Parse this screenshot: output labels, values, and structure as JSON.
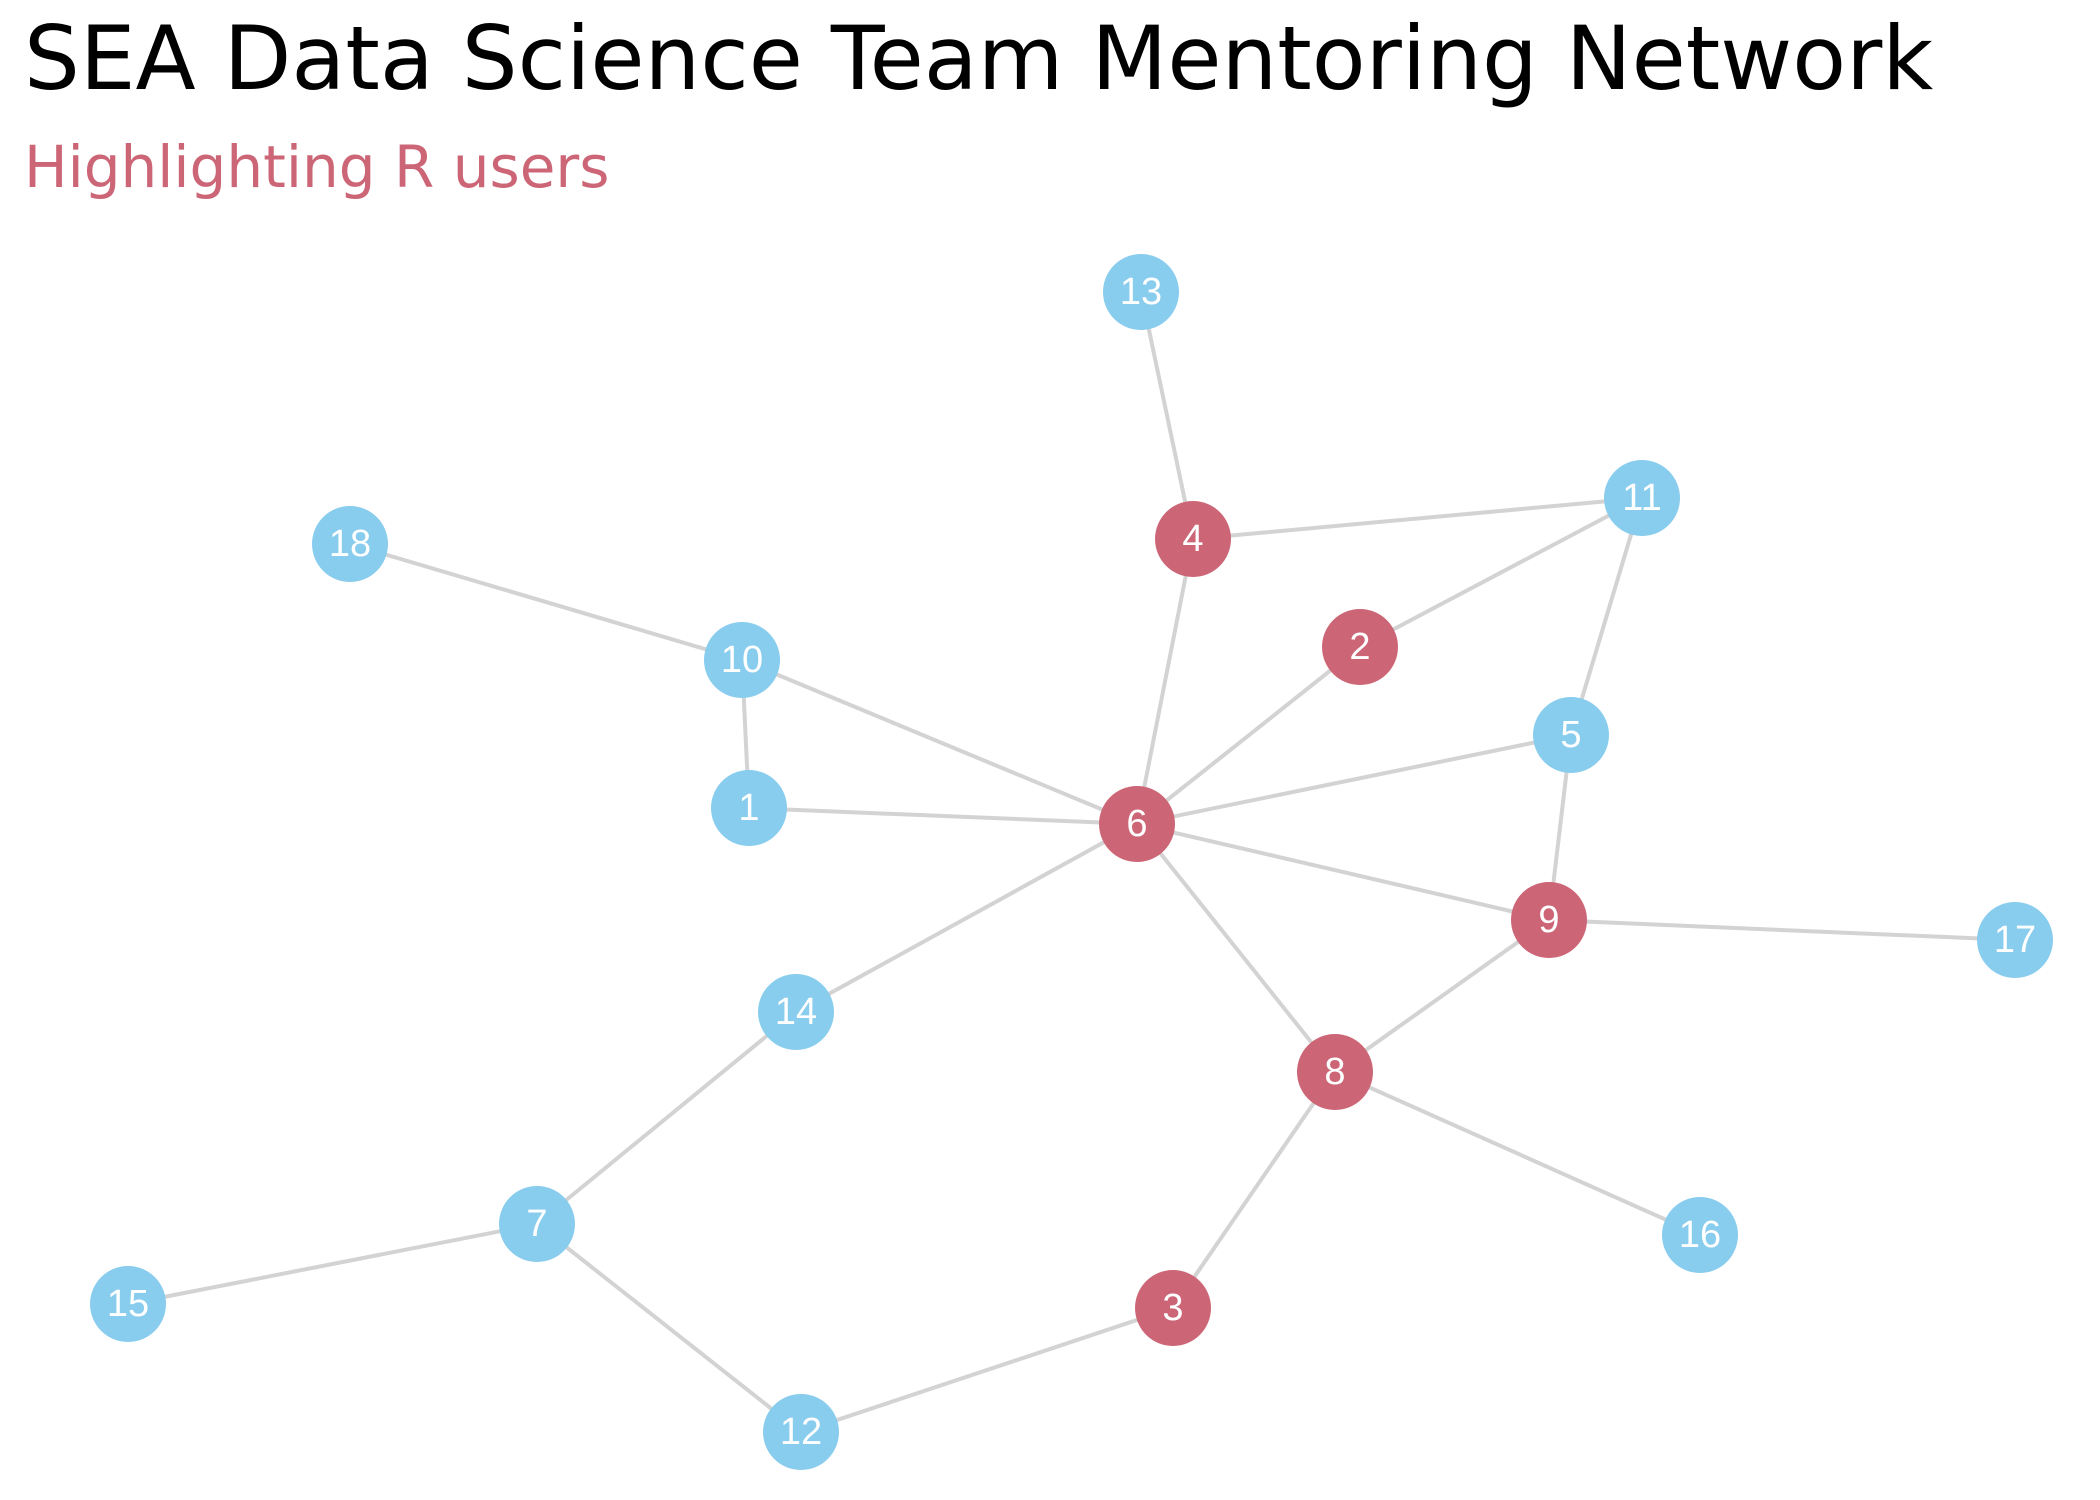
{
  "title": "SEA Data Science Team Mentoring Network",
  "subtitle": "Highlighting R users",
  "colors": {
    "r_user": "#CC6677",
    "other": "#88CCEE",
    "edge": "#D3D3D3",
    "subtitle": "#CC6677"
  },
  "nodes": [
    {
      "id": "1",
      "r_user": false
    },
    {
      "id": "2",
      "r_user": true
    },
    {
      "id": "3",
      "r_user": true
    },
    {
      "id": "4",
      "r_user": true
    },
    {
      "id": "5",
      "r_user": false
    },
    {
      "id": "6",
      "r_user": true
    },
    {
      "id": "7",
      "r_user": false
    },
    {
      "id": "8",
      "r_user": true
    },
    {
      "id": "9",
      "r_user": true
    },
    {
      "id": "10",
      "r_user": false
    },
    {
      "id": "11",
      "r_user": false
    },
    {
      "id": "12",
      "r_user": false
    },
    {
      "id": "13",
      "r_user": false
    },
    {
      "id": "14",
      "r_user": false
    },
    {
      "id": "15",
      "r_user": false
    },
    {
      "id": "16",
      "r_user": false
    },
    {
      "id": "17",
      "r_user": false
    },
    {
      "id": "18",
      "r_user": false
    }
  ],
  "edges": [
    [
      "13",
      "4"
    ],
    [
      "4",
      "11"
    ],
    [
      "4",
      "6"
    ],
    [
      "11",
      "2"
    ],
    [
      "11",
      "5"
    ],
    [
      "18",
      "10"
    ],
    [
      "10",
      "1"
    ],
    [
      "10",
      "6"
    ],
    [
      "1",
      "6"
    ],
    [
      "2",
      "6"
    ],
    [
      "5",
      "6"
    ],
    [
      "5",
      "9"
    ],
    [
      "6",
      "9"
    ],
    [
      "6",
      "8"
    ],
    [
      "6",
      "14"
    ],
    [
      "9",
      "17"
    ],
    [
      "9",
      "8"
    ],
    [
      "8",
      "16"
    ],
    [
      "8",
      "3"
    ],
    [
      "14",
      "7"
    ],
    [
      "7",
      "15"
    ],
    [
      "7",
      "12"
    ],
    [
      "12",
      "3"
    ]
  ]
}
